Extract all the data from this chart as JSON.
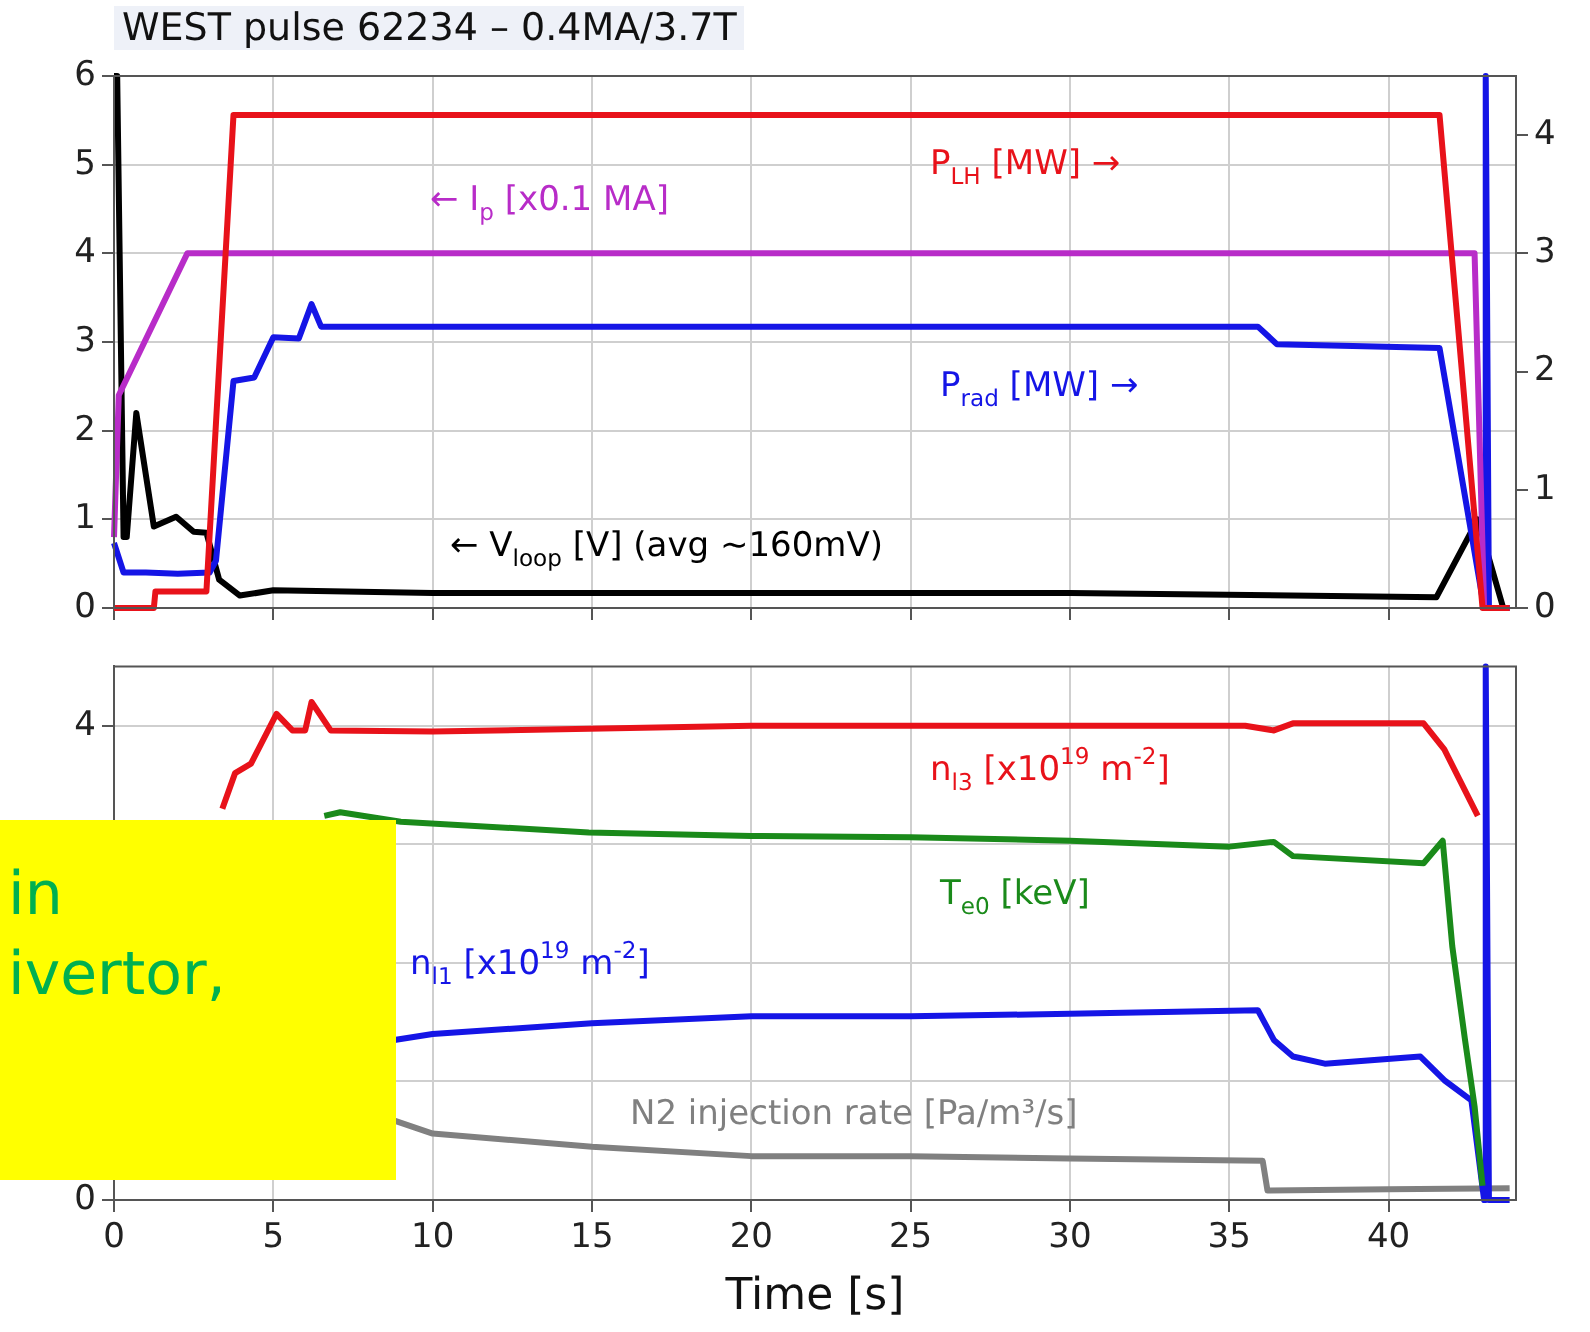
{
  "chart_data": [
    {
      "type": "line",
      "title": "WEST pulse 62234 – 0.4MA/3.7T",
      "xlim": [
        0,
        44
      ],
      "xticks": [
        0,
        5,
        10,
        15,
        20,
        25,
        30,
        35,
        40
      ],
      "ylim": [
        0,
        6
      ],
      "yticks": [
        0,
        1,
        2,
        3,
        4,
        5,
        6
      ],
      "y2lim": [
        0,
        4.5
      ],
      "y2ticks": [
        0,
        1,
        2,
        3,
        4
      ],
      "tick_labels": "y",
      "grid": true,
      "legend": false,
      "marker": "none",
      "series": [
        {
          "name": "P$_{LH}$ [MW] →",
          "color": "#e8121a",
          "axis": "y2",
          "x": [
            0,
            1.25,
            1.3,
            2.9,
            3.75,
            41.6,
            42.95,
            43.8
          ],
          "values": [
            0,
            0,
            0.14,
            0.14,
            4.17,
            4.17,
            0,
            0
          ]
        },
        {
          "name": "← I$_{p}$ [x0.1 MA]",
          "color": "#b82cc8",
          "x": [
            0,
            0.15,
            2.3,
            42.7,
            43.0,
            43.8
          ],
          "values": [
            0.8,
            2.4,
            4.0,
            4.0,
            0,
            0
          ]
        },
        {
          "name": "P$_{rad}$ [MW] →",
          "color": "#1515e6",
          "axis": "y2",
          "x": [
            0,
            0.3,
            1,
            2,
            3,
            3.2,
            3.75,
            4.4,
            5,
            5.8,
            6.2,
            6.5,
            10,
            20,
            30,
            35.9,
            36.5,
            41.6,
            43,
            43.05,
            43.15,
            43.8
          ],
          "values": [
            0.55,
            0.3,
            0.3,
            0.29,
            0.3,
            0.4,
            1.92,
            1.95,
            2.29,
            2.28,
            2.57,
            2.38,
            2.38,
            2.38,
            2.38,
            2.38,
            2.23,
            2.2,
            0,
            4.5,
            0,
            0
          ]
        },
        {
          "name": "← V$_{loop}$ [V] (avg ~160mV)",
          "color": "#000000",
          "x": [
            0,
            0.1,
            0.3,
            0.4,
            0.7,
            1.25,
            1.95,
            2.5,
            2.9,
            3.3,
            3.95,
            5,
            10,
            20,
            30,
            41.5,
            42.8,
            43.6,
            43.8
          ],
          "values": [
            6,
            6,
            0.8,
            0.8,
            2.2,
            0.92,
            1.03,
            0.86,
            0.85,
            0.32,
            0.14,
            0.2,
            0.17,
            0.17,
            0.17,
            0.12,
            1.0,
            0,
            0
          ]
        }
      ]
    },
    {
      "type": "line",
      "xlabel": "Time [s]",
      "xlim": [
        0,
        44
      ],
      "xticks": [
        0,
        5,
        10,
        15,
        20,
        25,
        30,
        35,
        40
      ],
      "ylim": [
        0,
        4.5
      ],
      "yticks": [
        0,
        {
          "value": 1,
          "label": null
        },
        {
          "value": 2,
          "label": null
        },
        {
          "value": 3,
          "label": null
        },
        4
      ],
      "grid": true,
      "legend": false,
      "marker": "none",
      "annotations": [
        "in\nivertor,"
      ],
      "series": [
        {
          "name": "n$_{l3}$ [x10$^{19}$ m$^{-2}$]",
          "color": "#e8121a",
          "x": [
            3.4,
            3.8,
            4.3,
            5.1,
            5.6,
            6,
            6.2,
            6.8,
            10,
            20,
            30,
            35.5,
            36.4,
            37,
            41.1,
            41.75,
            42.8
          ],
          "values": [
            3.3,
            3.6,
            3.68,
            4.1,
            3.96,
            3.96,
            4.2,
            3.96,
            3.95,
            4.0,
            4.0,
            4.0,
            3.96,
            4.02,
            4.02,
            3.8,
            3.24
          ]
        },
        {
          "name": "T$_{e0}$ [keV]",
          "color": "#1a8a1a",
          "x": [
            6.6,
            7.1,
            9,
            14.9,
            20,
            25,
            30,
            35,
            36.4,
            37,
            41.1,
            41.7,
            42,
            42.4,
            42.7,
            42.95
          ],
          "values": [
            3.24,
            3.27,
            3.19,
            3.1,
            3.07,
            3.06,
            3.03,
            2.98,
            3.02,
            2.9,
            2.84,
            3.03,
            2.14,
            1.35,
            0.79,
            0.12
          ]
        },
        {
          "name": "n$_{l1}$ [x10$^{19}$ m$^{-2}$]",
          "color": "#1515e6",
          "x": [
            8.8,
            10,
            15,
            20,
            25,
            30,
            35.9,
            36.4,
            37,
            38,
            41,
            41.75,
            42.6,
            43,
            43.05,
            43.15,
            43.8
          ],
          "values": [
            1.35,
            1.4,
            1.49,
            1.55,
            1.55,
            1.57,
            1.6,
            1.35,
            1.21,
            1.15,
            1.21,
            1.01,
            0.84,
            0,
            4.5,
            0,
            0
          ]
        },
        {
          "name": "N2 injection rate [Pa/m³/s]",
          "color": "#808080",
          "x": [
            8.8,
            10,
            15,
            20,
            25,
            30,
            36.05,
            36.2,
            40,
            43.8
          ],
          "values": [
            0.67,
            0.56,
            0.45,
            0.37,
            0.37,
            0.35,
            0.33,
            0.08,
            0.09,
            0.1
          ]
        }
      ]
    }
  ]
}
